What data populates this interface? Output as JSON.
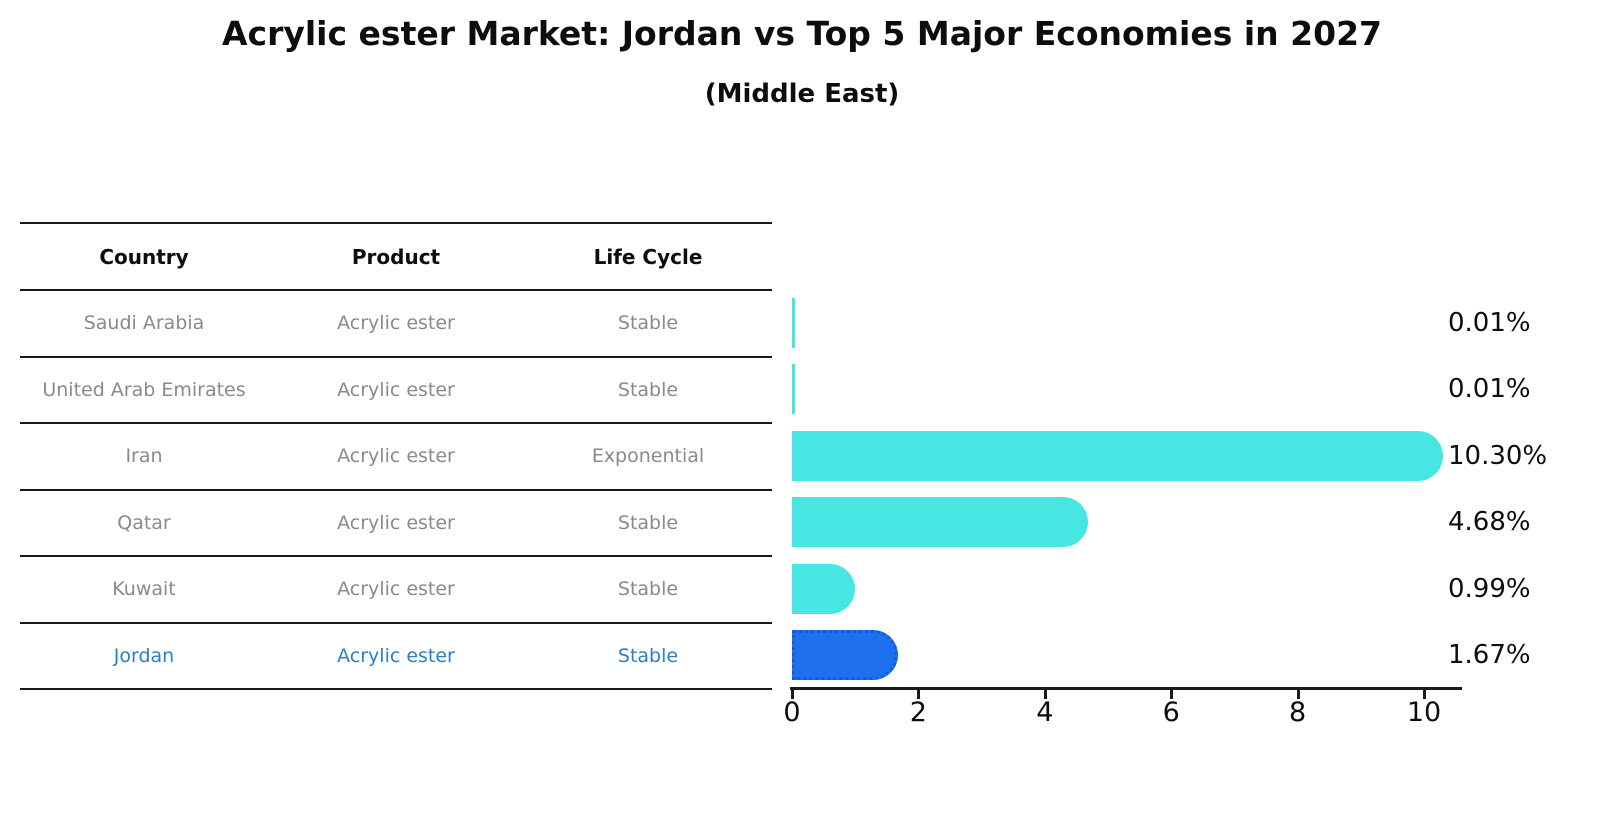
{
  "title": "Acrylic ester Market: Jordan vs Top 5 Major Economies in 2027",
  "subtitle": "(Middle East)",
  "table": {
    "headers": [
      "Country",
      "Product",
      "Life Cycle"
    ],
    "rows": [
      {
        "country": "Saudi Arabia",
        "product": "Acrylic ester",
        "life_cycle": "Stable",
        "highlighted": false
      },
      {
        "country": "United Arab Emirates",
        "product": "Acrylic ester",
        "life_cycle": "Stable",
        "highlighted": false
      },
      {
        "country": "Iran",
        "product": "Acrylic ester",
        "life_cycle": "Exponential",
        "highlighted": false
      },
      {
        "country": "Qatar",
        "product": "Acrylic ester",
        "life_cycle": "Stable",
        "highlighted": false
      },
      {
        "country": "Kuwait",
        "product": "Acrylic ester",
        "life_cycle": "Stable",
        "highlighted": false
      },
      {
        "country": "Jordan",
        "product": "Acrylic ester",
        "life_cycle": "Stable",
        "highlighted": true
      }
    ]
  },
  "chart_data": {
    "type": "bar",
    "orientation": "horizontal",
    "title": "Acrylic ester Market: Jordan vs Top 5 Major Economies in 2027",
    "subtitle": "(Middle East)",
    "categories": [
      "Saudi Arabia",
      "United Arab Emirates",
      "Iran",
      "Qatar",
      "Kuwait",
      "Jordan"
    ],
    "values": [
      0.01,
      0.01,
      10.3,
      4.68,
      0.99,
      1.67
    ],
    "value_labels": [
      "0.01%",
      "0.01%",
      "10.30%",
      "4.68%",
      "0.99%",
      "1.67%"
    ],
    "xticks": [
      0,
      2,
      4,
      6,
      8,
      10
    ],
    "xlim": [
      0,
      10.6
    ],
    "grid": false,
    "legend": "none",
    "bar_color": "#47E6E2",
    "highlight_index": 5,
    "highlight_color": "#1E70EE",
    "highlight_edge_color": "#0d5ed8",
    "highlight_edge_style": "dotted",
    "highlight_text_color": "#2e7ec0",
    "axis_color": "#1a1a1a",
    "muted_text_color": "#8a8a8a"
  }
}
